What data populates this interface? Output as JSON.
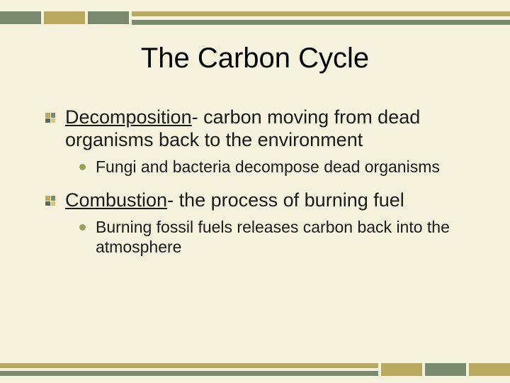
{
  "colors": {
    "background": "#f4f2dd",
    "dark_green": "#7a8a6f",
    "olive": "#b9a95f",
    "bullet_circle": "#98a060",
    "text": "#1a1a1a"
  },
  "slide": {
    "title": "The Carbon Cycle",
    "title_fontsize": 40,
    "items": [
      {
        "term": "Decomposition",
        "definition": "- carbon moving from dead organisms back to the environment",
        "sub": "Fungi and bacteria decompose dead organisms"
      },
      {
        "term": "Combustion",
        "definition": "- the process of burning fuel",
        "sub": "Burning fossil fuels releases carbon back into the atmosphere"
      }
    ],
    "body_fontsize_lvl1": 27,
    "body_fontsize_lvl2": 23
  }
}
